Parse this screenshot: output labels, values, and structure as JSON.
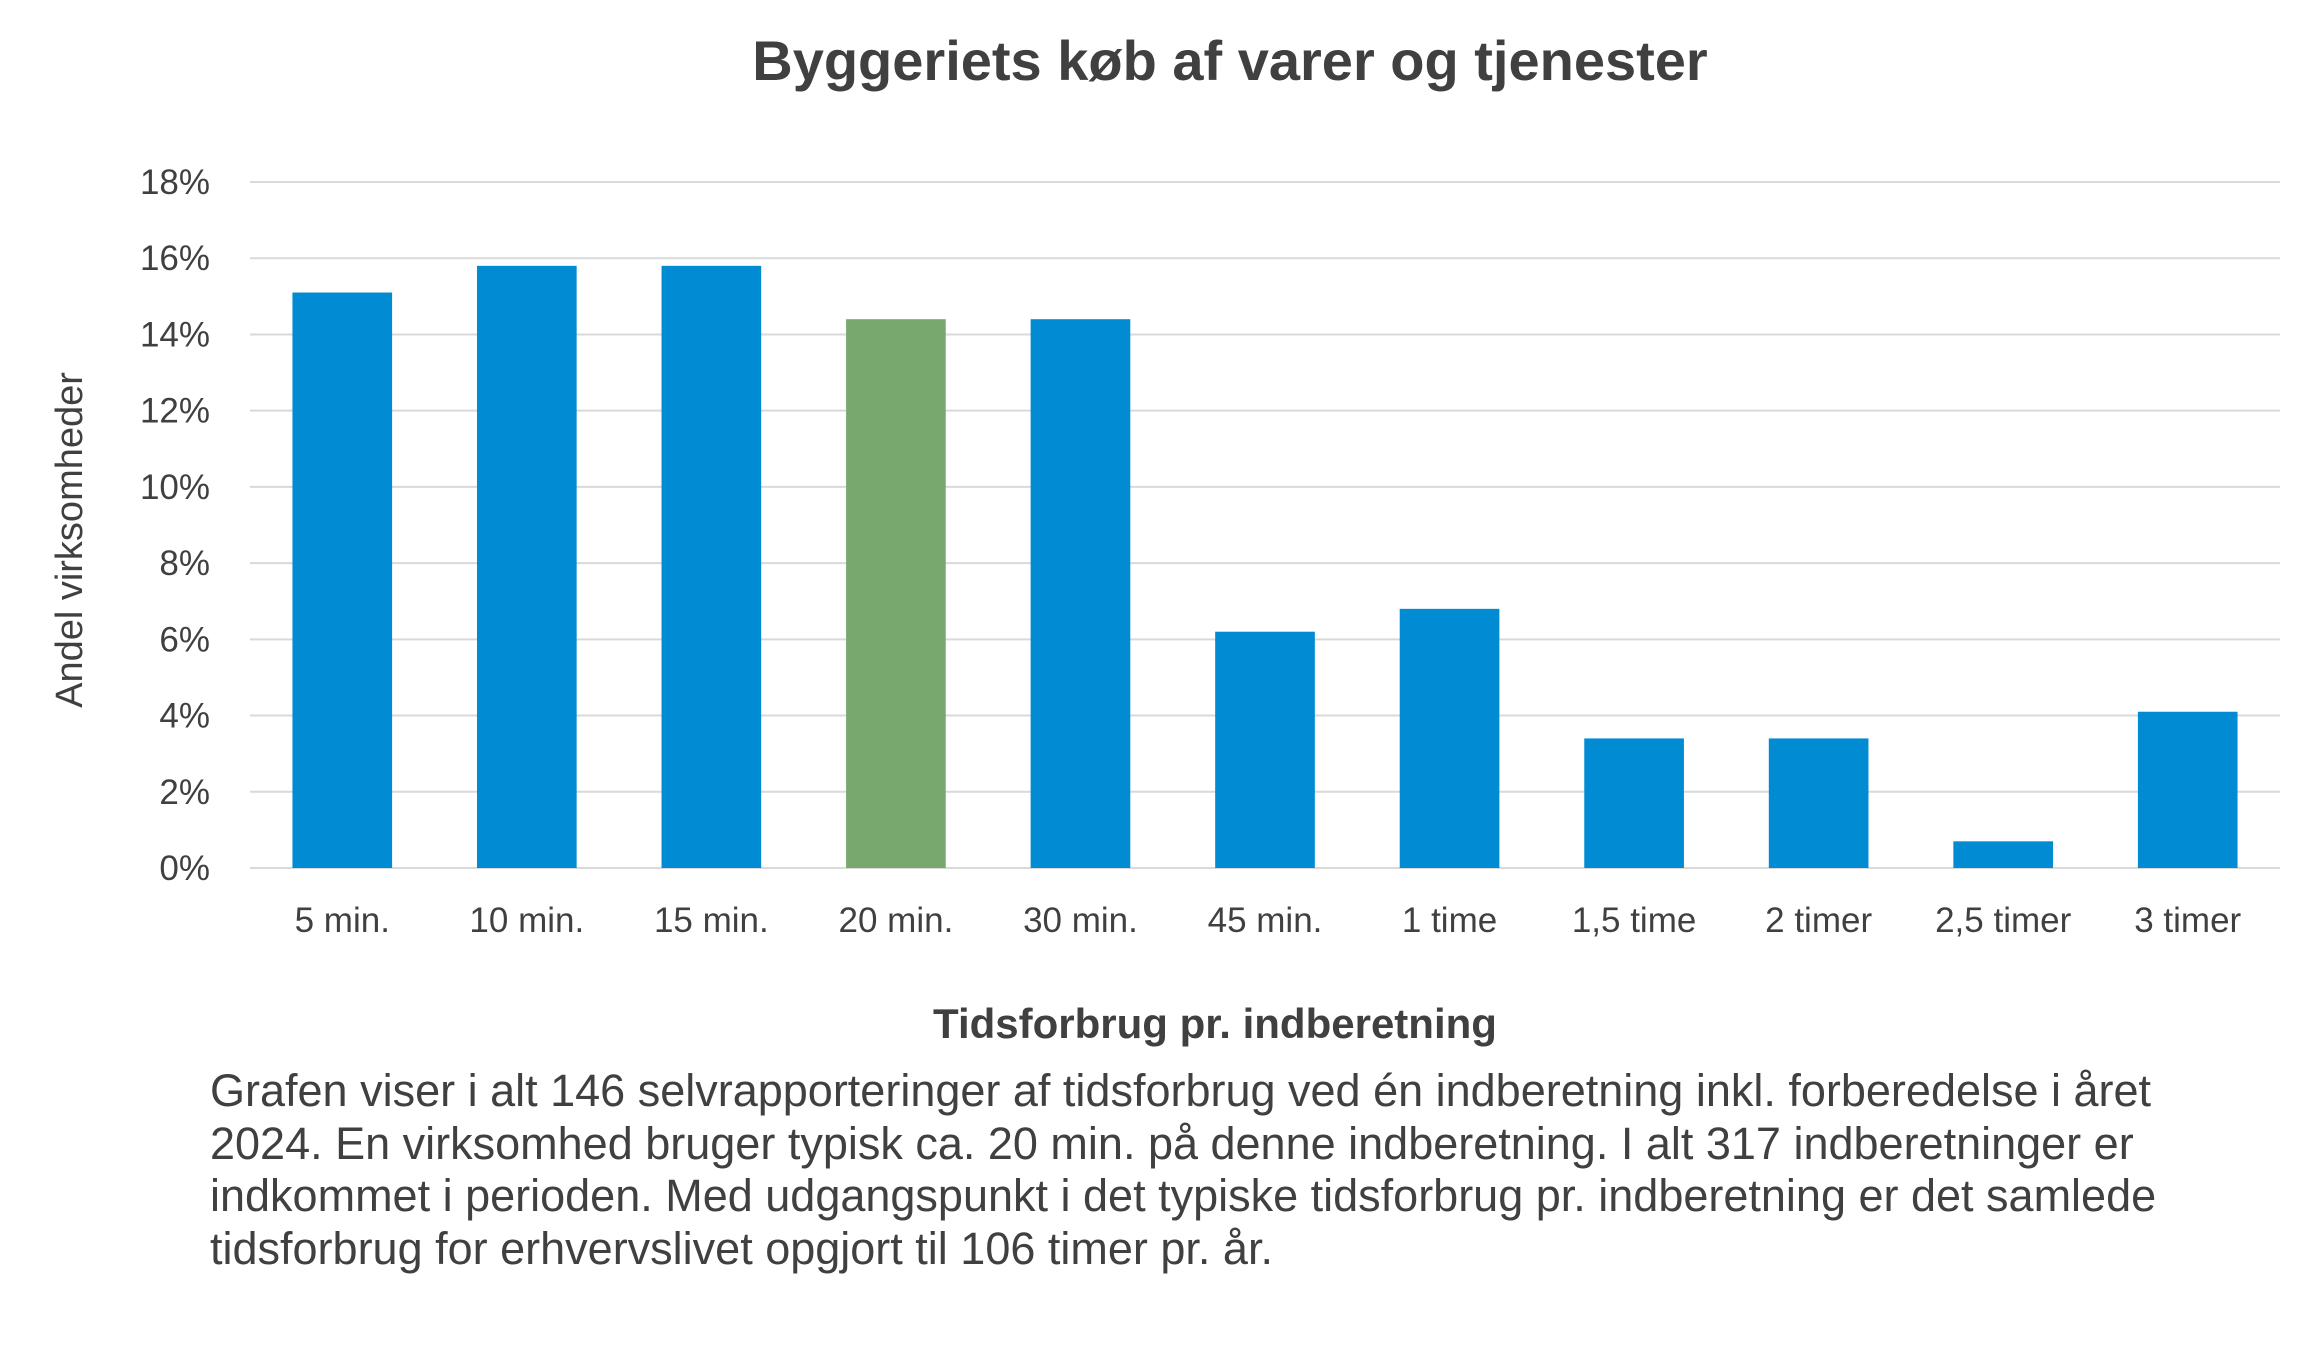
{
  "chart_data": {
    "type": "bar",
    "title": "Byggeriets køb af varer og tjenester",
    "xlabel": "Tidsforbrug pr. indberetning",
    "ylabel": "Andel virksomheder",
    "categories": [
      "5 min.",
      "10 min.",
      "15 min.",
      "20 min.",
      "30 min.",
      "45 min.",
      "1 time",
      "1,5 time",
      "2 timer",
      "2,5 timer",
      "3 timer"
    ],
    "values": [
      15.1,
      15.8,
      15.8,
      14.4,
      14.4,
      6.2,
      6.8,
      3.4,
      3.4,
      0.7,
      4.1
    ],
    "highlight_index": 3,
    "ylim": [
      0,
      18
    ],
    "yticks": [
      0,
      2,
      4,
      6,
      8,
      10,
      12,
      14,
      16,
      18
    ],
    "ytick_labels": [
      "0%",
      "2%",
      "4%",
      "6%",
      "8%",
      "10%",
      "12%",
      "14%",
      "16%",
      "18%"
    ],
    "grid": true,
    "colors": {
      "bar": "#008BD2",
      "highlight": "#78A86E",
      "grid": "#D9D9D9",
      "text": "#404040"
    }
  },
  "caption": "Grafen viser i alt 146 selvrapporteringer af tidsforbrug ved én indberetning inkl. forberedelse i året 2024. En virksomhed bruger typisk ca. 20 min. på denne indberetning. I alt 317 indberetninger er indkommet i perioden. Med udgangspunkt i det typiske tidsforbrug pr. indberetning er det samlede tidsforbrug for erhvervslivet opgjort til 106 timer pr. år."
}
